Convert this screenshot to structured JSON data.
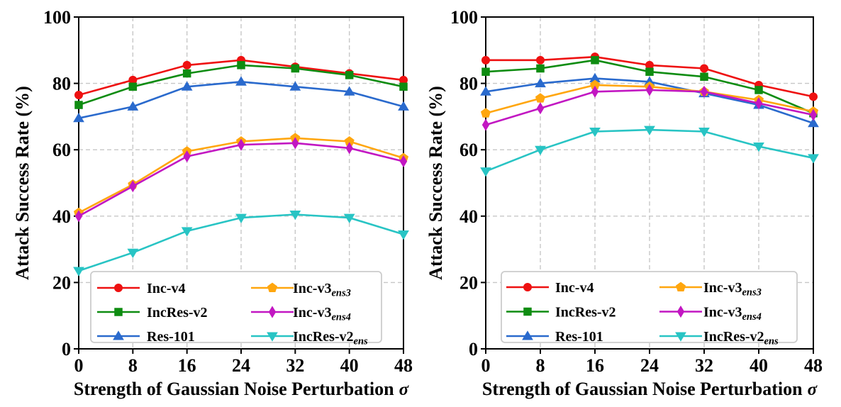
{
  "colors": {
    "background": "#ffffff",
    "axis": "#000000",
    "grid": "#c7c7c7",
    "legend_border": "#cccccc",
    "legend_background": "#ffffff"
  },
  "chart_data": [
    {
      "type": "line",
      "panel": "left",
      "title": "",
      "xlabel": "Strength of Gaussian Noise Perturbation σ",
      "xlabel_text": "Strength of Gaussian Noise Perturbation",
      "xlabel_symbol": "σ",
      "ylabel": "Attack Success Rate (%)",
      "x": [
        0,
        8,
        16,
        24,
        32,
        40,
        48
      ],
      "xlim": [
        0,
        48
      ],
      "ylim": [
        0,
        100
      ],
      "yticks": [
        0,
        20,
        40,
        60,
        80,
        100
      ],
      "grid": "dashed",
      "legend": {
        "position": "lower left",
        "columns": 2
      },
      "series": [
        {
          "name": "Inc-v4",
          "label_base": "Inc-v4",
          "label_sub": "",
          "marker": "circle",
          "color": "#ee1111",
          "values": [
            76.5,
            81,
            85.5,
            87,
            85,
            83,
            81
          ]
        },
        {
          "name": "IncRes-v2",
          "label_base": "IncRes-v2",
          "label_sub": "",
          "marker": "square",
          "color": "#0e8c11",
          "values": [
            73.5,
            79,
            83,
            85.5,
            84.5,
            82.5,
            79
          ]
        },
        {
          "name": "Res-101",
          "label_base": "Res-101",
          "label_sub": "",
          "marker": "triangle-up",
          "color": "#2a6acd",
          "values": [
            69.5,
            73,
            79,
            80.5,
            79,
            77.5,
            73
          ]
        },
        {
          "name": "Inc-v3_ens3",
          "label_base": "Inc-v3",
          "label_sub": "ens3",
          "marker": "pentagon",
          "color": "#ffa60e",
          "values": [
            41,
            49.5,
            59.5,
            62.5,
            63.5,
            62.5,
            57.5
          ]
        },
        {
          "name": "Inc-v3_ens4",
          "label_base": "Inc-v3",
          "label_sub": "ens4",
          "marker": "diamond",
          "color": "#c217c2",
          "values": [
            40,
            49,
            58,
            61.5,
            62,
            60.5,
            56.5
          ]
        },
        {
          "name": "IncRes-v2_ens",
          "label_base": "IncRes-v2",
          "label_sub": "ens",
          "marker": "triangle-down",
          "color": "#28c4c4",
          "values": [
            23.5,
            29,
            35.5,
            39.5,
            40.5,
            39.5,
            34.5
          ]
        }
      ]
    },
    {
      "type": "line",
      "panel": "right",
      "title": "",
      "xlabel": "Strength of Gaussian Noise Perturbation σ",
      "xlabel_text": "Strength of Gaussian Noise Perturbation",
      "xlabel_symbol": "σ",
      "ylabel": "Attack Success Rate (%)",
      "x": [
        0,
        8,
        16,
        24,
        32,
        40,
        48
      ],
      "xlim": [
        0,
        48
      ],
      "ylim": [
        0,
        100
      ],
      "yticks": [
        0,
        20,
        40,
        60,
        80,
        100
      ],
      "grid": "dashed",
      "legend": {
        "position": "lower left",
        "columns": 2
      },
      "series": [
        {
          "name": "Inc-v4",
          "label_base": "Inc-v4",
          "label_sub": "",
          "marker": "circle",
          "color": "#ee1111",
          "values": [
            87,
            87,
            88,
            85.5,
            84.5,
            79.5,
            76
          ]
        },
        {
          "name": "IncRes-v2",
          "label_base": "IncRes-v2",
          "label_sub": "",
          "marker": "square",
          "color": "#0e8c11",
          "values": [
            83.5,
            84.5,
            87,
            83.5,
            82,
            78,
            71
          ]
        },
        {
          "name": "Res-101",
          "label_base": "Res-101",
          "label_sub": "",
          "marker": "triangle-up",
          "color": "#2a6acd",
          "values": [
            77.5,
            80,
            81.5,
            80.5,
            77,
            73.5,
            68
          ]
        },
        {
          "name": "Inc-v3_ens3",
          "label_base": "Inc-v3",
          "label_sub": "ens3",
          "marker": "pentagon",
          "color": "#ffa60e",
          "values": [
            71,
            75.5,
            79.5,
            79,
            77.5,
            75,
            71.5
          ]
        },
        {
          "name": "Inc-v3_ens4",
          "label_base": "Inc-v3",
          "label_sub": "ens4",
          "marker": "diamond",
          "color": "#c217c2",
          "values": [
            67.5,
            72.5,
            77.5,
            78,
            77.5,
            74,
            70.5
          ]
        },
        {
          "name": "IncRes-v2_ens",
          "label_base": "IncRes-v2",
          "label_sub": "ens",
          "marker": "triangle-down",
          "color": "#28c4c4",
          "values": [
            53.5,
            60,
            65.5,
            66,
            65.5,
            61,
            57.5
          ]
        }
      ]
    }
  ]
}
